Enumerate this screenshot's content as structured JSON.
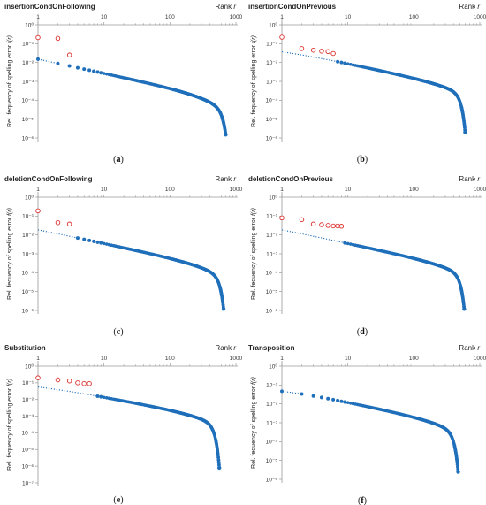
{
  "figure": {
    "rank_label": "Rank r",
    "ylabel": "Rel. fequency of spelling error  f(r)",
    "x_ticks": [
      "1",
      "10",
      "100",
      "1000"
    ]
  },
  "chart_data": [
    {
      "type": "scatter",
      "title": "insertionCondOnFollowing",
      "caption": "(a)",
      "xlabel": "Rank r",
      "ylabel": "Rel. fequency of spelling error  f(r)",
      "x_scale": "log",
      "y_scale": "log",
      "xlim": [
        1,
        1000
      ],
      "ylim": [
        1e-06,
        1
      ],
      "y_ticks": [
        "10⁰",
        "10⁻¹",
        "10⁻²",
        "10⁻³",
        "10⁻⁴",
        "10⁻⁵",
        "10⁻⁶"
      ],
      "fit": {
        "c": 0.015,
        "a": 0.0,
        "b": 0.00055,
        "p": 1.2
      },
      "data_range": [
        1,
        700
      ],
      "outliers": [
        [
          1,
          0.21
        ],
        [
          2,
          0.19
        ],
        [
          3,
          0.025
        ]
      ],
      "tail_end": 1.5e-06,
      "colors": {
        "points": "#1f6fba",
        "outliers": "#d9302c"
      },
      "grid": false
    },
    {
      "type": "scatter",
      "title": "insertionCondOnPrevious",
      "caption": "(b)",
      "xlabel": "Rank r",
      "ylabel": "Rel. fequency of spelling error  f(r)",
      "x_scale": "log",
      "y_scale": "log",
      "xlim": [
        1,
        1000
      ],
      "ylim": [
        1e-06,
        1
      ],
      "y_ticks": [
        "10⁰",
        "10⁻¹",
        "10⁻²",
        "10⁻³",
        "10⁻⁴",
        "10⁻⁵",
        "10⁻⁶"
      ],
      "fit": {
        "c": 0.05,
        "a": 0.5,
        "b": 0.0003,
        "p": 1.25
      },
      "data_range": [
        7,
        600
      ],
      "outliers": [
        [
          1,
          0.22
        ],
        [
          2,
          0.055
        ],
        [
          3,
          0.045
        ],
        [
          4,
          0.04
        ],
        [
          5,
          0.038
        ],
        [
          6,
          0.03
        ]
      ],
      "tail_end": 2e-06,
      "colors": {
        "points": "#1f6fba",
        "outliers": "#d9302c"
      },
      "grid": false
    },
    {
      "type": "scatter",
      "title": "deletionCondOnFollowing",
      "caption": "(c)",
      "xlabel": "Rank r",
      "ylabel": "Rel. fequency of spelling error  f(r)",
      "x_scale": "log",
      "y_scale": "log",
      "xlim": [
        1,
        1000
      ],
      "ylim": [
        1e-06,
        1
      ],
      "y_ticks": [
        "10⁰",
        "10⁻¹",
        "10⁻²",
        "10⁻³",
        "10⁻⁴",
        "10⁻⁵",
        "10⁻⁶"
      ],
      "fit": {
        "c": 0.02,
        "a": 0.1,
        "b": 0.0004,
        "p": 1.22
      },
      "data_range": [
        4,
        650
      ],
      "outliers": [
        [
          1,
          0.19
        ],
        [
          2,
          0.045
        ],
        [
          3,
          0.038
        ]
      ],
      "tail_end": 1.2e-06,
      "colors": {
        "points": "#1f6fba",
        "outliers": "#d9302c"
      },
      "grid": false
    },
    {
      "type": "scatter",
      "title": "deletionCondOnPrevious",
      "caption": "(d)",
      "xlabel": "Rank r",
      "ylabel": "Rel. fequency of spelling error  f(r)",
      "x_scale": "log",
      "y_scale": "log",
      "xlim": [
        1,
        1000
      ],
      "ylim": [
        1e-06,
        1
      ],
      "y_ticks": [
        "10⁰",
        "10⁻¹",
        "10⁻²",
        "10⁻³",
        "10⁻⁴",
        "10⁻⁵",
        "10⁻⁶"
      ],
      "fit": {
        "c": 0.02,
        "a": 0.1,
        "b": 0.0004,
        "p": 1.22
      },
      "data_range": [
        9,
        580
      ],
      "outliers": [
        [
          1,
          0.08
        ],
        [
          2,
          0.065
        ],
        [
          3,
          0.038
        ],
        [
          4,
          0.035
        ],
        [
          5,
          0.032
        ],
        [
          6,
          0.03
        ],
        [
          7,
          0.03
        ],
        [
          8,
          0.029
        ]
      ],
      "tail_end": 1.2e-06,
      "colors": {
        "points": "#1f6fba",
        "outliers": "#d9302c"
      },
      "grid": false
    },
    {
      "type": "scatter",
      "title": "Substitution",
      "caption": "(e)",
      "xlabel": "Rank r",
      "ylabel": "Rel. fequency of spelling error  f(r)",
      "x_scale": "log",
      "y_scale": "log",
      "xlim": [
        1,
        1000
      ],
      "ylim": [
        1e-07,
        1
      ],
      "y_ticks": [
        "10⁰",
        "10⁻¹",
        "10⁻²",
        "10⁻³",
        "10⁻⁴",
        "10⁻⁵",
        "10⁻⁶",
        "10⁻⁷"
      ],
      "fit": {
        "c": 0.08,
        "a": 0.6,
        "b": 0.0004,
        "p": 1.25
      },
      "data_range": [
        8,
        560
      ],
      "outliers": [
        [
          1,
          0.2
        ],
        [
          2,
          0.15
        ],
        [
          3,
          0.13
        ],
        [
          4,
          0.1
        ],
        [
          5,
          0.09
        ],
        [
          6,
          0.09
        ]
      ],
      "tail_end": 8e-07,
      "colors": {
        "points": "#1f6fba",
        "outliers": "#d9302c"
      },
      "grid": false
    },
    {
      "type": "scatter",
      "title": "Transposition",
      "caption": "(f)",
      "xlabel": "Rank r",
      "ylabel": "Rel. fequency of spelling error  f(r)",
      "x_scale": "log",
      "y_scale": "log",
      "xlim": [
        1,
        1000
      ],
      "ylim": [
        1e-06,
        1
      ],
      "y_ticks": [
        "10⁰",
        "10⁻¹",
        "10⁻²",
        "10⁻³",
        "10⁻⁴",
        "10⁻⁵",
        "10⁻⁶"
      ],
      "fit": {
        "c": 0.07,
        "a": 0.7,
        "b": 0.00035,
        "p": 1.3
      },
      "data_range": [
        1,
        470
      ],
      "outliers": [],
      "tail_end": 2.5e-06,
      "colors": {
        "points": "#1f6fba",
        "outliers": "#d9302c"
      },
      "grid": false
    }
  ]
}
